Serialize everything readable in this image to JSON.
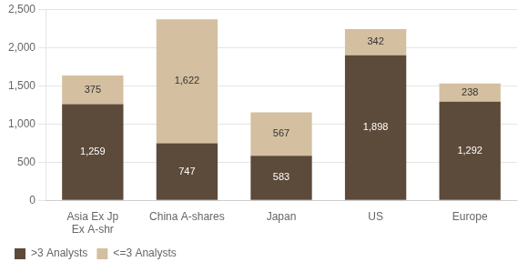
{
  "chart_data": {
    "type": "bar",
    "stacked": true,
    "data_labels": true,
    "grid": true,
    "legend": "lower left",
    "categories": [
      "Asia Ex Jp\nEx A-shr",
      "China A-shares",
      "Japan",
      "US",
      "Europe"
    ],
    "series": [
      {
        "name": ">3 Analysts",
        "color": "#5c4a3a",
        "values": [
          1259,
          747,
          583,
          1898,
          1292
        ],
        "value_labels": [
          "1,259",
          "747",
          "583",
          "1,898",
          "1,292"
        ]
      },
      {
        "name": "<=3 Analysts",
        "color": "#d4bfa0",
        "values": [
          375,
          1622,
          567,
          342,
          238
        ],
        "value_labels": [
          "375",
          "1,622",
          "567",
          "342",
          "238"
        ]
      }
    ],
    "ylim": [
      0,
      2500
    ],
    "yticks": [
      0,
      500,
      {
        "value": 1000,
        "label": "1,000"
      },
      {
        "value": 1500,
        "label": "1,500"
      },
      {
        "value": 2000,
        "label": "2,000"
      },
      {
        "value": 2500,
        "label": "2,500"
      }
    ]
  }
}
